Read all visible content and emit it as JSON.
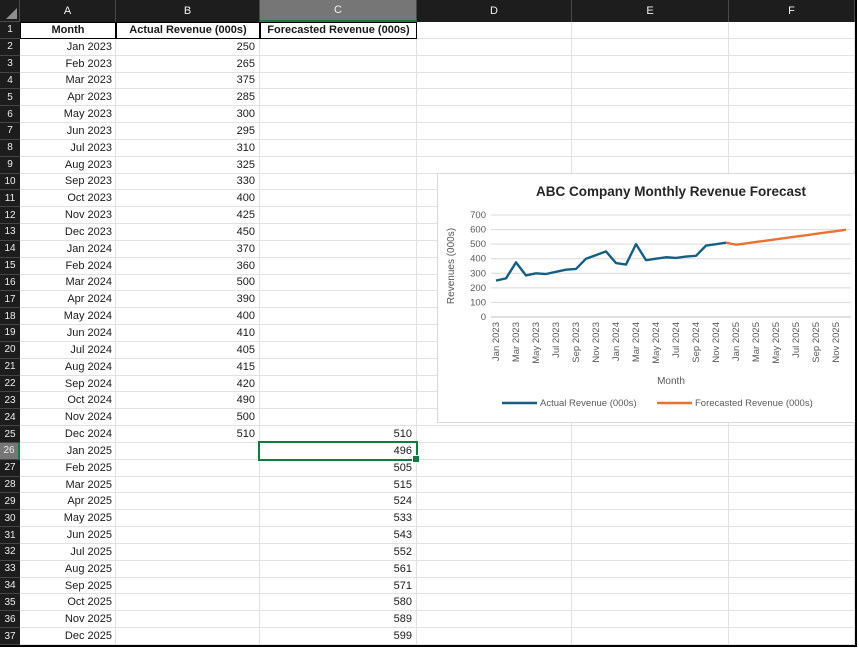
{
  "colors": {
    "selection_green": "#107C41",
    "actual_line": "#156082",
    "forecast_line": "#E97132",
    "header_bg": "#1d1d1d",
    "header_selected_bg": "#767676",
    "gridline": "#e2e2e2",
    "chart_text_gray": "#595959"
  },
  "spreadsheet": {
    "columns": [
      "A",
      "B",
      "C",
      "D",
      "E",
      "F"
    ],
    "row_count": 37,
    "selection": {
      "cell_ref": "C26",
      "column": "C",
      "row": 26,
      "value": "496"
    },
    "table_headers": [
      "Month",
      "Actual Revenue (000s)",
      "Forecasted Revenue (000s)"
    ],
    "rows": [
      {
        "row": 2,
        "month": "Jan 2023",
        "actual": "250",
        "forecast": ""
      },
      {
        "row": 3,
        "month": "Feb 2023",
        "actual": "265",
        "forecast": ""
      },
      {
        "row": 4,
        "month": "Mar 2023",
        "actual": "375",
        "forecast": ""
      },
      {
        "row": 5,
        "month": "Apr 2023",
        "actual": "285",
        "forecast": ""
      },
      {
        "row": 6,
        "month": "May 2023",
        "actual": "300",
        "forecast": ""
      },
      {
        "row": 7,
        "month": "Jun 2023",
        "actual": "295",
        "forecast": ""
      },
      {
        "row": 8,
        "month": "Jul 2023",
        "actual": "310",
        "forecast": ""
      },
      {
        "row": 9,
        "month": "Aug 2023",
        "actual": "325",
        "forecast": ""
      },
      {
        "row": 10,
        "month": "Sep 2023",
        "actual": "330",
        "forecast": ""
      },
      {
        "row": 11,
        "month": "Oct 2023",
        "actual": "400",
        "forecast": ""
      },
      {
        "row": 12,
        "month": "Nov 2023",
        "actual": "425",
        "forecast": ""
      },
      {
        "row": 13,
        "month": "Dec 2023",
        "actual": "450",
        "forecast": ""
      },
      {
        "row": 14,
        "month": "Jan 2024",
        "actual": "370",
        "forecast": ""
      },
      {
        "row": 15,
        "month": "Feb 2024",
        "actual": "360",
        "forecast": ""
      },
      {
        "row": 16,
        "month": "Mar 2024",
        "actual": "500",
        "forecast": ""
      },
      {
        "row": 17,
        "month": "Apr 2024",
        "actual": "390",
        "forecast": ""
      },
      {
        "row": 18,
        "month": "May 2024",
        "actual": "400",
        "forecast": ""
      },
      {
        "row": 19,
        "month": "Jun 2024",
        "actual": "410",
        "forecast": ""
      },
      {
        "row": 20,
        "month": "Jul 2024",
        "actual": "405",
        "forecast": ""
      },
      {
        "row": 21,
        "month": "Aug 2024",
        "actual": "415",
        "forecast": ""
      },
      {
        "row": 22,
        "month": "Sep 2024",
        "actual": "420",
        "forecast": ""
      },
      {
        "row": 23,
        "month": "Oct 2024",
        "actual": "490",
        "forecast": ""
      },
      {
        "row": 24,
        "month": "Nov 2024",
        "actual": "500",
        "forecast": ""
      },
      {
        "row": 25,
        "month": "Dec 2024",
        "actual": "510",
        "forecast": "510"
      },
      {
        "row": 26,
        "month": "Jan 2025",
        "actual": "",
        "forecast": "496"
      },
      {
        "row": 27,
        "month": "Feb 2025",
        "actual": "",
        "forecast": "505"
      },
      {
        "row": 28,
        "month": "Mar 2025",
        "actual": "",
        "forecast": "515"
      },
      {
        "row": 29,
        "month": "Apr 2025",
        "actual": "",
        "forecast": "524"
      },
      {
        "row": 30,
        "month": "May 2025",
        "actual": "",
        "forecast": "533"
      },
      {
        "row": 31,
        "month": "Jun 2025",
        "actual": "",
        "forecast": "543"
      },
      {
        "row": 32,
        "month": "Jul 2025",
        "actual": "",
        "forecast": "552"
      },
      {
        "row": 33,
        "month": "Aug 2025",
        "actual": "",
        "forecast": "561"
      },
      {
        "row": 34,
        "month": "Sep 2025",
        "actual": "",
        "forecast": "571"
      },
      {
        "row": 35,
        "month": "Oct 2025",
        "actual": "",
        "forecast": "580"
      },
      {
        "row": 36,
        "month": "Nov 2025",
        "actual": "",
        "forecast": "589"
      },
      {
        "row": 37,
        "month": "Dec 2025",
        "actual": "",
        "forecast": "599"
      }
    ]
  },
  "chart_data": {
    "type": "line",
    "title": "ABC Company Monthly Revenue Forecast",
    "xlabel": "Month",
    "ylabel": "Revenues (000s)",
    "ylim": [
      0,
      700
    ],
    "ytick_step": 100,
    "grid": true,
    "legend_position": "bottom",
    "x_categories": [
      "Jan 2023",
      "Feb 2023",
      "Mar 2023",
      "Apr 2023",
      "May 2023",
      "Jun 2023",
      "Jul 2023",
      "Aug 2023",
      "Sep 2023",
      "Oct 2023",
      "Nov 2023",
      "Dec 2023",
      "Jan 2024",
      "Feb 2024",
      "Mar 2024",
      "Apr 2024",
      "May 2024",
      "Jun 2024",
      "Jul 2024",
      "Aug 2024",
      "Sep 2024",
      "Oct 2024",
      "Nov 2024",
      "Dec 2024",
      "Jan 2025",
      "Feb 2025",
      "Mar 2025",
      "Apr 2025",
      "May 2025",
      "Jun 2025",
      "Jul 2025",
      "Aug 2025",
      "Sep 2025",
      "Oct 2025",
      "Nov 2025",
      "Dec 2025"
    ],
    "xtick_labels": [
      "Jan 2023",
      "Mar 2023",
      "May 2023",
      "Jul 2023",
      "Sep 2023",
      "Nov 2023",
      "Jan 2024",
      "Mar 2024",
      "May 2024",
      "Jul 2024",
      "Sep 2024",
      "Nov 2024",
      "Jan 2025",
      "Mar 2025",
      "May 2025",
      "Jul 2025",
      "Sep 2025",
      "Nov 2025"
    ],
    "series": [
      {
        "name": "Actual Revenue (000s)",
        "color": "#156082",
        "start_index": 0,
        "values": [
          250,
          265,
          375,
          285,
          300,
          295,
          310,
          325,
          330,
          400,
          425,
          450,
          370,
          360,
          500,
          390,
          400,
          410,
          405,
          415,
          420,
          490,
          500,
          510
        ]
      },
      {
        "name": "Forecasted Revenue (000s)",
        "color": "#E97132",
        "start_index": 23,
        "values": [
          510,
          496,
          505,
          515,
          524,
          533,
          543,
          552,
          561,
          571,
          580,
          589,
          599
        ]
      }
    ]
  }
}
